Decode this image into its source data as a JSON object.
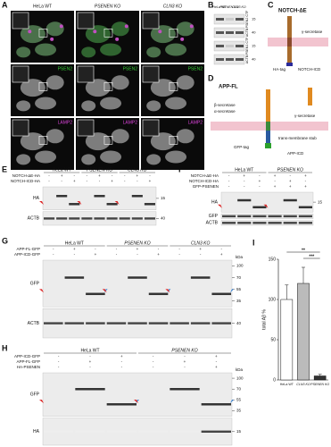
{
  "panel_labels": [
    "A",
    "B",
    "C",
    "D",
    "E",
    "F",
    "G",
    "H",
    "I"
  ],
  "a": {
    "columns": [
      "HeLa WT",
      "PSENEN KO",
      "CLN3 KO"
    ],
    "rows": [
      "PSEN2",
      "LAMP2"
    ]
  },
  "b": {
    "columns": [
      "HeLa WT",
      "PSENEN KO",
      "CLN3 KO"
    ],
    "blots": [
      "PSEN2 CTF",
      "ACTB",
      "PSEN1 CTF",
      "ACTB"
    ],
    "kda": [
      15,
      40,
      15,
      40
    ]
  },
  "c": {
    "title": "NOTCH-ΔE",
    "labels": [
      "γ-secretase",
      "HA-tag",
      "NOTCH-ICD"
    ]
  },
  "d": {
    "title": "APP-FL",
    "labels": [
      "β-secretase",
      "α-secretase",
      "γ-secretase",
      "GFP-tag",
      "trans-membrane stub",
      "APP-ICD"
    ]
  },
  "e": {
    "groups": [
      "HeLa WT",
      "PSENEN KO",
      "CLN3 KO"
    ],
    "conditions": [
      {
        "name": "NOTCH-ΔE-HA",
        "signs": [
          "-",
          "+",
          "-",
          "-",
          "+",
          "-",
          "-",
          "+",
          "-"
        ]
      },
      {
        "name": "NOTCH-ICD-HA",
        "signs": [
          "-",
          "-",
          "+",
          "-",
          "-",
          "+",
          "-",
          "-",
          "+"
        ]
      }
    ],
    "blots": [
      "HA",
      "ACTB"
    ],
    "kda": [
      15,
      40
    ]
  },
  "f": {
    "groups": [
      "HeLa WT",
      "PSENEN KO"
    ],
    "conditions": [
      {
        "name": "NOTCH-ΔE-HA",
        "signs": [
          "-",
          "+",
          "-",
          "+",
          "-",
          "+"
        ]
      },
      {
        "name": "NOTCH-ICD-HA",
        "signs": [
          "-",
          "-",
          "+",
          "-",
          "+",
          "-"
        ]
      },
      {
        "name": "GFP-PSENEN",
        "signs": [
          "-",
          "-",
          "-",
          "+",
          "+",
          "+"
        ]
      }
    ],
    "blots": [
      "HA",
      "GFP",
      "ACTB"
    ],
    "kda": [
      15
    ]
  },
  "g": {
    "groups": [
      "HeLa WT",
      "PSENEN KO",
      "CLN3 KO"
    ],
    "conditions": [
      {
        "name": "APP-FL-GFP",
        "signs": [
          "-",
          "+",
          "-",
          "-",
          "+",
          "-",
          "-",
          "+",
          "-"
        ]
      },
      {
        "name": "APP-ICD-GFP",
        "signs": [
          "-",
          "-",
          "+",
          "-",
          "-",
          "+",
          "-",
          "-",
          "+"
        ]
      }
    ],
    "blots": [
      "GFP",
      "ACTB"
    ],
    "kda_unit": "kDa",
    "kda": [
      100,
      70,
      55,
      35,
      40
    ]
  },
  "h": {
    "groups": [
      "HeLa WT",
      "PSENEN KO"
    ],
    "conditions": [
      {
        "name": "APP-ICD-GFP",
        "signs": [
          "-",
          "-",
          "+",
          "-",
          "-",
          "+"
        ]
      },
      {
        "name": "APP-FL-GFP",
        "signs": [
          "-",
          "+",
          "-",
          "-",
          "+",
          "-"
        ]
      },
      {
        "name": "HA-PSENEN",
        "signs": [
          "-",
          "-",
          "-",
          "-",
          "-",
          "+"
        ]
      }
    ],
    "blots": [
      "GFP",
      "HA"
    ],
    "kda_unit": "kDa",
    "kda": [
      100,
      70,
      55,
      35,
      15
    ]
  },
  "chart_data": {
    "type": "bar",
    "ylabel": "total Aβ %",
    "categories": [
      "HeLa WT",
      "CLN3 KO",
      "PSENEN KO"
    ],
    "values": [
      100,
      120,
      5
    ],
    "errors": [
      18,
      20,
      2
    ],
    "colors": [
      "#ffffff",
      "#bbbbbb",
      "#333333"
    ],
    "ylim": [
      0,
      150
    ],
    "yticks": [
      0,
      50,
      100,
      150
    ],
    "significance": [
      "**",
      "***"
    ]
  }
}
